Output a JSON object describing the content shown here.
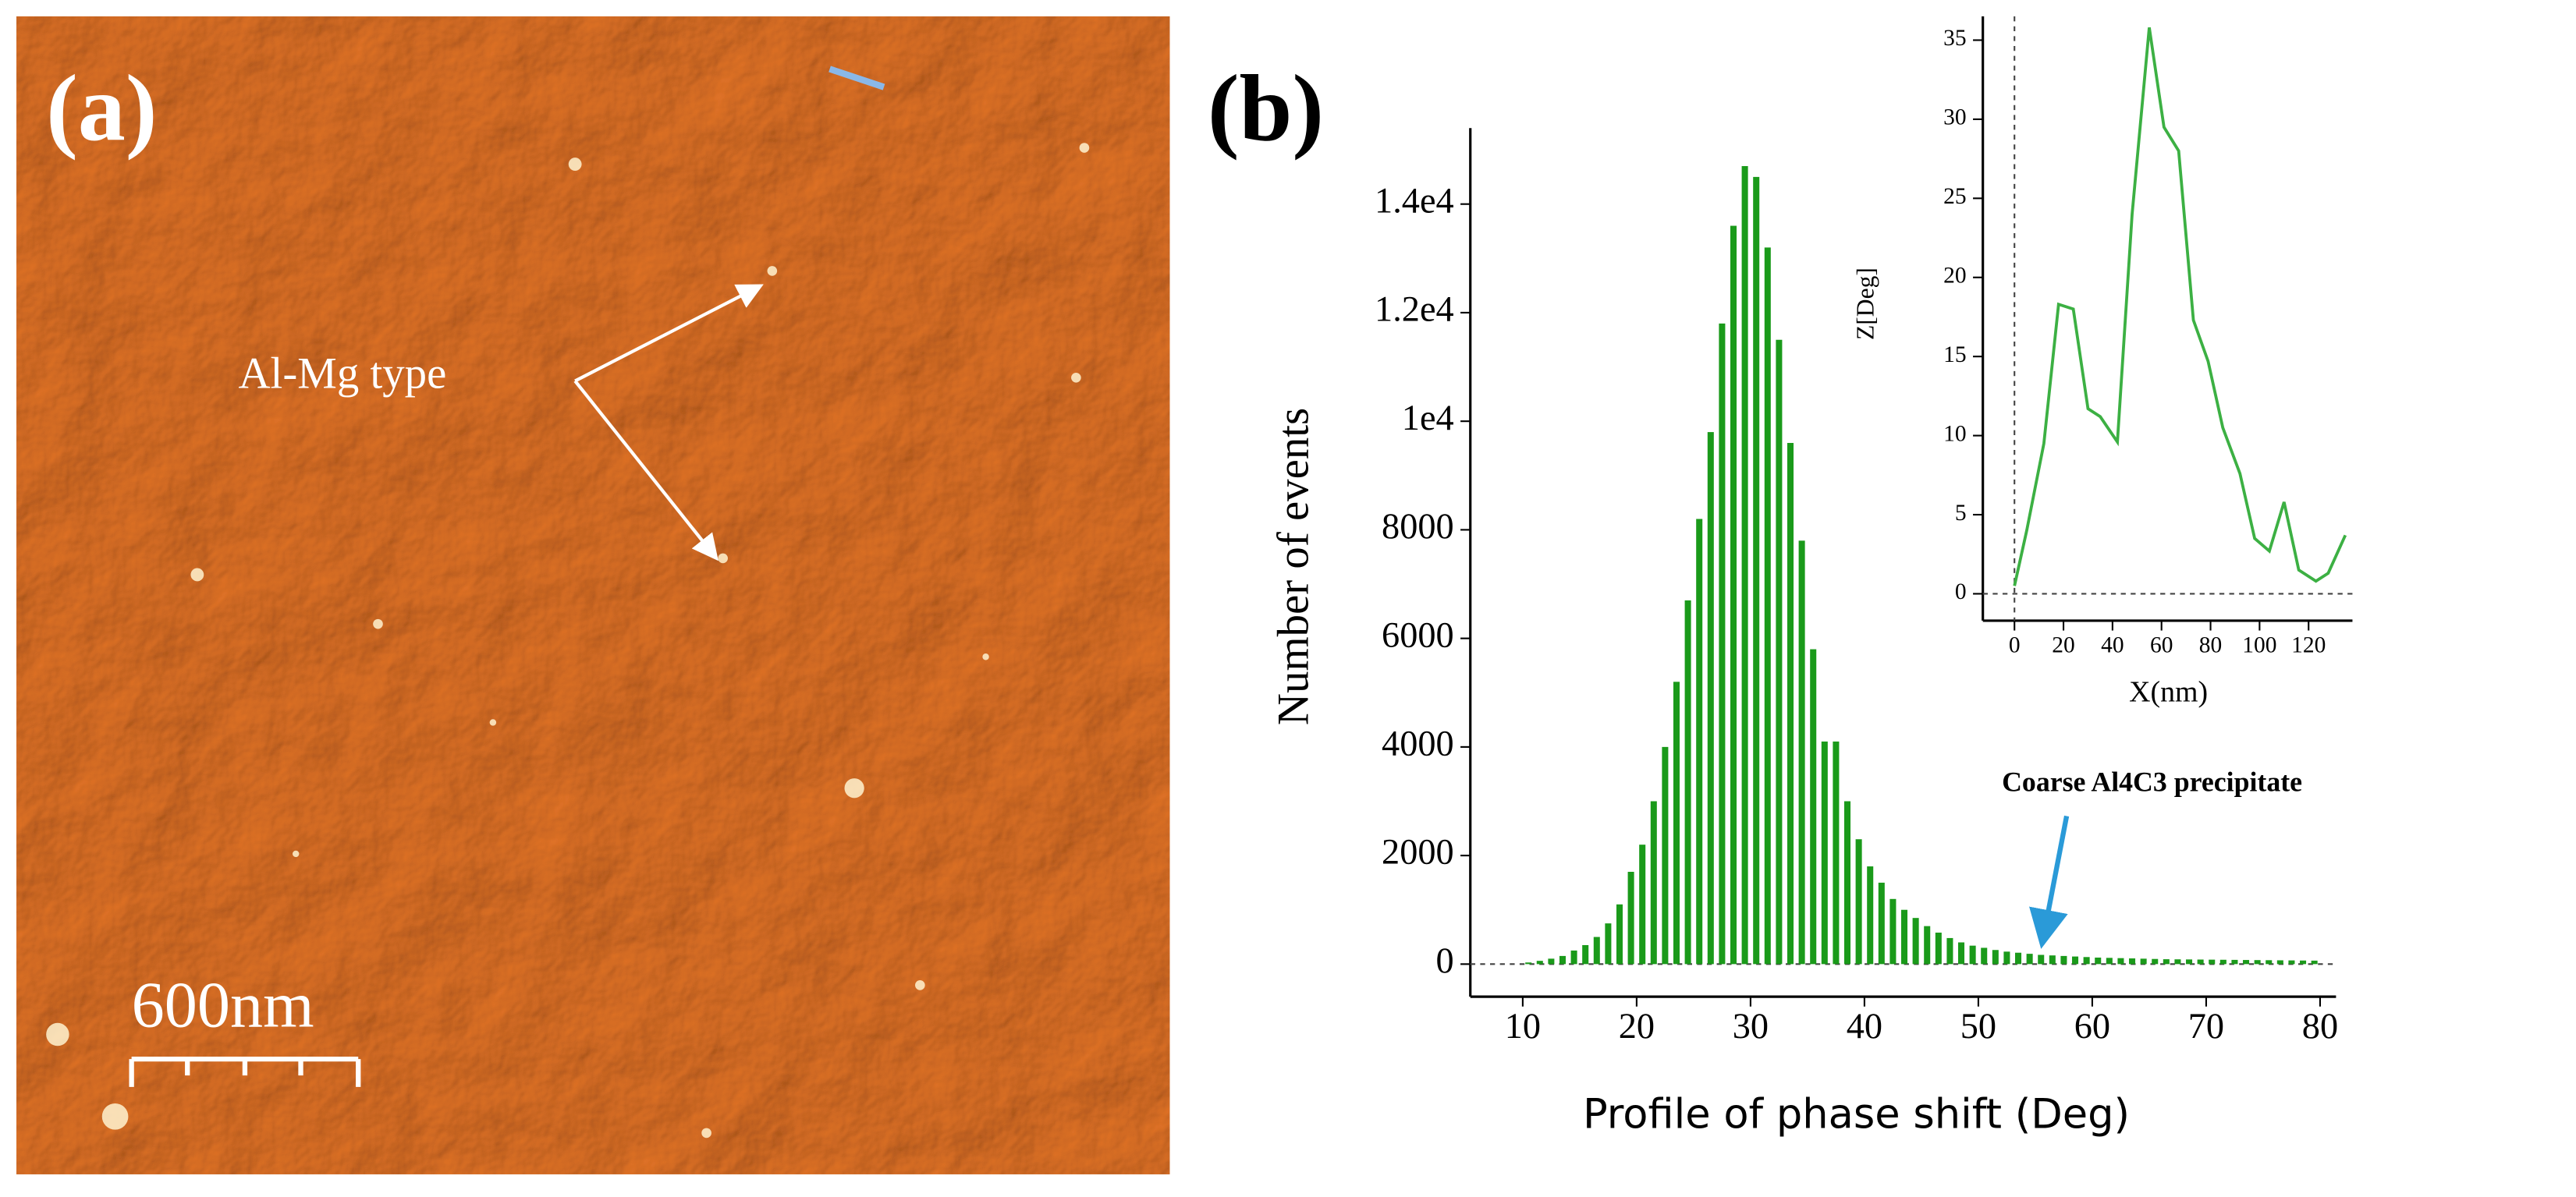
{
  "panel_a": {
    "label": "(a)",
    "annotation": "Al-Mg type",
    "scale_bar": "600nm"
  },
  "panel_b_label": "(b)",
  "chart_data": [
    {
      "type": "histogram",
      "x_label": "Profile of phase shift (Deg)",
      "y_label": "Number of events",
      "annotation": "Coarse Al4C3 precipitate",
      "color": "#1a9a1a",
      "bins": [
        10,
        11,
        12,
        13,
        14,
        15,
        16,
        17,
        18,
        19,
        20,
        21,
        22,
        23,
        24,
        25,
        26,
        27,
        28,
        29,
        30,
        31,
        32,
        33,
        34,
        35,
        36,
        37,
        38,
        39,
        40,
        41,
        42,
        43,
        44,
        45,
        46,
        47,
        48,
        49,
        50,
        51,
        52,
        53,
        54,
        55,
        56,
        57,
        58,
        59,
        60,
        61,
        62,
        63,
        64,
        65,
        66,
        67,
        68,
        69,
        70,
        71,
        72,
        73,
        74,
        75,
        76,
        77,
        78,
        79,
        80
      ],
      "values": [
        30,
        60,
        100,
        150,
        250,
        350,
        500,
        750,
        1100,
        1700,
        2200,
        3000,
        4000,
        5200,
        6700,
        8200,
        9800,
        11800,
        13600,
        14700,
        14500,
        13200,
        11500,
        9600,
        7800,
        5800,
        4100,
        4100,
        3000,
        2300,
        1800,
        1500,
        1200,
        1000,
        850,
        700,
        580,
        480,
        400,
        340,
        300,
        260,
        230,
        210,
        190,
        170,
        160,
        150,
        140,
        130,
        120,
        115,
        110,
        105,
        100,
        95,
        90,
        88,
        86,
        84,
        82,
        80,
        78,
        76,
        74,
        72,
        70,
        68,
        66,
        64
      ],
      "xlim": [
        5.4,
        81.4
      ],
      "ylim": [
        -600,
        15400
      ],
      "xticks": [
        10,
        20,
        30,
        40,
        50,
        60,
        70,
        80
      ],
      "yticks": [
        0,
        2000,
        4000,
        6000,
        8000,
        {
          "value": 10000,
          "label": "1e4"
        },
        {
          "value": 12000,
          "label": "1.2e4"
        },
        {
          "value": 14000,
          "label": "1.4e4"
        }
      ]
    },
    {
      "type": "line",
      "x_label": "X(nm)",
      "y_label": "Z[Deg]",
      "color": "#3cb043",
      "x": [
        0,
        5,
        12,
        18,
        24,
        30,
        35,
        42,
        48,
        55,
        61,
        67,
        73,
        79,
        85,
        92,
        98,
        104,
        110,
        116,
        123,
        128,
        135
      ],
      "values": [
        0.5,
        4,
        9.5,
        18.3,
        18,
        11.7,
        11.2,
        9.6,
        24,
        35.8,
        29.5,
        28,
        17.3,
        14.7,
        10.5,
        7.6,
        3.5,
        2.7,
        5.8,
        1.5,
        0.8,
        1.3,
        3.7
      ],
      "xlim": [
        -12.9,
        137.9
      ],
      "ylim": [
        -1.7,
        36.5
      ],
      "xticks": [
        0,
        20,
        40,
        60,
        80,
        100,
        120
      ],
      "yticks": [
        0,
        5,
        10,
        15,
        20,
        25,
        30,
        35
      ]
    }
  ]
}
